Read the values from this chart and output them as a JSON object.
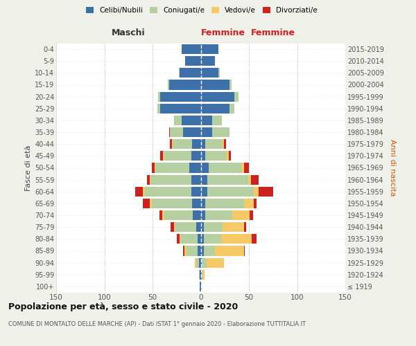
{
  "age_groups": [
    "100+",
    "95-99",
    "90-94",
    "85-89",
    "80-84",
    "75-79",
    "70-74",
    "65-69",
    "60-64",
    "55-59",
    "50-54",
    "45-49",
    "40-44",
    "35-39",
    "30-34",
    "25-29",
    "20-24",
    "15-19",
    "10-14",
    "5-9",
    "0-4"
  ],
  "birth_years": [
    "≤ 1919",
    "1920-1924",
    "1925-1929",
    "1930-1934",
    "1935-1939",
    "1940-1944",
    "1945-1949",
    "1950-1954",
    "1955-1959",
    "1960-1964",
    "1965-1969",
    "1970-1974",
    "1975-1979",
    "1980-1984",
    "1985-1989",
    "1990-1994",
    "1995-1999",
    "2000-2004",
    "2005-2009",
    "2010-2014",
    "2015-2019"
  ],
  "male": {
    "celibi": [
      1,
      1,
      2,
      3,
      3,
      5,
      8,
      9,
      10,
      10,
      12,
      10,
      9,
      18,
      20,
      42,
      42,
      33,
      22,
      16,
      20
    ],
    "coniugati": [
      0,
      1,
      3,
      12,
      18,
      22,
      30,
      42,
      48,
      42,
      35,
      28,
      20,
      14,
      8,
      3,
      2,
      1,
      1,
      0,
      0
    ],
    "vedovi": [
      0,
      0,
      1,
      2,
      1,
      1,
      2,
      2,
      2,
      1,
      1,
      1,
      1,
      0,
      0,
      0,
      0,
      0,
      0,
      0,
      0
    ],
    "divorziati": [
      0,
      0,
      0,
      1,
      3,
      3,
      3,
      7,
      8,
      3,
      3,
      3,
      2,
      1,
      0,
      0,
      0,
      0,
      0,
      0,
      0
    ]
  },
  "female": {
    "nubili": [
      0,
      1,
      1,
      3,
      3,
      3,
      5,
      5,
      7,
      7,
      8,
      5,
      5,
      12,
      12,
      30,
      35,
      30,
      18,
      15,
      18
    ],
    "coniugate": [
      0,
      1,
      5,
      12,
      18,
      20,
      28,
      40,
      48,
      42,
      35,
      22,
      18,
      18,
      10,
      5,
      4,
      2,
      2,
      0,
      0
    ],
    "vedove": [
      1,
      2,
      18,
      30,
      32,
      22,
      18,
      10,
      5,
      3,
      2,
      2,
      1,
      0,
      0,
      0,
      0,
      0,
      0,
      0,
      0
    ],
    "divorziate": [
      0,
      0,
      0,
      1,
      5,
      2,
      3,
      3,
      15,
      8,
      5,
      2,
      2,
      0,
      0,
      0,
      0,
      0,
      0,
      0,
      0
    ]
  },
  "colors": {
    "celibi": "#3d6fa8",
    "coniugati": "#b5cfa0",
    "vedovi": "#f5c965",
    "divorziati": "#cc2222"
  },
  "xlim": 150,
  "title": "Popolazione per età, sesso e stato civile - 2020",
  "subtitle": "COMUNE DI MONTALTO DELLE MARCHE (AP) - Dati ISTAT 1° gennaio 2020 - Elaborazione TUTTITALIA.IT",
  "ylabel_left": "Fasce di età",
  "ylabel_right": "Anni di nascita",
  "xlabel_left": "Maschi",
  "xlabel_right": "Femmine",
  "bg_color": "#f0f0eb",
  "plot_bg": "#ffffff",
  "legend_labels": [
    "Celibi/Nubili",
    "Coniugati/e",
    "Vedovi/e",
    "Divorziati/e"
  ]
}
